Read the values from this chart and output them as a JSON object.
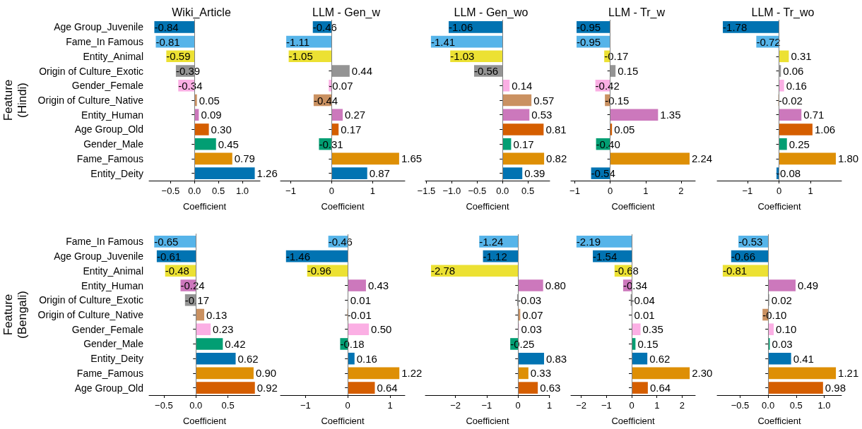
{
  "chart_data": [
    {
      "type": "bar",
      "orientation": "horizontal",
      "title": "Wiki_Article",
      "xlabel": "Coefficient",
      "ylabel": "Feature\n(Hindi)",
      "categories": [
        "Age Group_Juvenile",
        "Fame_In Famous",
        "Entity_Animal",
        "Origin of Culture_Exotic",
        "Gender_Female",
        "Origin of Culture_Native",
        "Entity_Human",
        "Age Group_Old",
        "Gender_Male",
        "Fame_Famous",
        "Entity_Deity"
      ],
      "values": [
        -0.84,
        -0.81,
        -0.59,
        -0.39,
        -0.34,
        0.05,
        0.09,
        0.3,
        0.45,
        0.79,
        1.26
      ],
      "value_labels": [
        "-0.84",
        "-0.81",
        "-0.59",
        "-0.39",
        "-0.34",
        "0.05",
        "0.09",
        "0.30",
        "0.45",
        "0.79",
        "1.26"
      ],
      "colors": [
        "#0173b2",
        "#56b4e9",
        "#ece133",
        "#949494",
        "#fbafe4",
        "#ca9161",
        "#cc78bc",
        "#d55e00",
        "#029e73",
        "#de8f05",
        "#0173b2"
      ],
      "xlim": [
        -0.95,
        1.37
      ],
      "xticks": [
        {
          "value": -0.5,
          "label": "−0.5"
        },
        {
          "value": 0,
          "label": "0.0"
        },
        {
          "value": 0.5,
          "label": "0.5"
        },
        {
          "value": 1,
          "label": "1.0"
        }
      ],
      "ref_lines": [
        {
          "axis": "x",
          "value": 0,
          "label": null,
          "color": "#808080"
        }
      ]
    },
    {
      "type": "bar",
      "orientation": "horizontal",
      "title": "LLM - Gen_w",
      "xlabel": "Coefficient",
      "tick_labels": "x",
      "categories": [
        null,
        null,
        null,
        null,
        null,
        null,
        null,
        null,
        null,
        null,
        null
      ],
      "values": [
        -0.46,
        -1.11,
        -1.05,
        0.44,
        -0.07,
        -0.44,
        0.27,
        0.17,
        -0.31,
        1.65,
        0.87
      ],
      "value_labels": [
        "-0.46",
        "-1.11",
        "-1.05",
        "0.44",
        "-0.07",
        "-0.44",
        "0.27",
        "0.17",
        "-0.31",
        "1.65",
        "0.87"
      ],
      "colors": [
        "#0173b2",
        "#56b4e9",
        "#ece133",
        "#949494",
        "#fbafe4",
        "#ca9161",
        "#cc78bc",
        "#d55e00",
        "#029e73",
        "#de8f05",
        "#0173b2"
      ],
      "xlim": [
        -1.25,
        1.79
      ],
      "xticks": [
        {
          "value": -1,
          "label": "−1"
        },
        {
          "value": 0,
          "label": "0"
        },
        {
          "value": 1,
          "label": "1"
        }
      ],
      "ref_lines": [
        {
          "axis": "x",
          "value": 0,
          "label": null,
          "color": "#808080"
        }
      ]
    },
    {
      "type": "bar",
      "orientation": "horizontal",
      "title": "LLM - Gen_wo",
      "xlabel": "Coefficient",
      "tick_labels": "x",
      "categories": [
        null,
        null,
        null,
        null,
        null,
        null,
        null,
        null,
        null,
        null,
        null
      ],
      "values": [
        -1.06,
        -1.41,
        -1.03,
        -0.56,
        0.14,
        0.57,
        0.53,
        0.81,
        0.17,
        0.82,
        0.39
      ],
      "value_labels": [
        "-1.06",
        "-1.41",
        "-1.03",
        "-0.56",
        "0.14",
        "0.57",
        "0.53",
        "0.81",
        "0.17",
        "0.82",
        "0.39"
      ],
      "colors": [
        "#0173b2",
        "#56b4e9",
        "#ece133",
        "#949494",
        "#fbafe4",
        "#ca9161",
        "#cc78bc",
        "#d55e00",
        "#029e73",
        "#de8f05",
        "#0173b2"
      ],
      "xlim": [
        -1.52,
        0.93
      ],
      "xticks": [
        {
          "value": -1.5,
          "label": "−1.5"
        },
        {
          "value": -1,
          "label": "−1.0"
        },
        {
          "value": -0.5,
          "label": "−0.5"
        },
        {
          "value": 0,
          "label": "0.0"
        },
        {
          "value": 0.5,
          "label": "0.5"
        }
      ],
      "ref_lines": [
        {
          "axis": "x",
          "value": 0,
          "label": null,
          "color": "#808080"
        }
      ]
    },
    {
      "type": "bar",
      "orientation": "horizontal",
      "title": "LLM - Tr_w",
      "xlabel": "Coefficient",
      "tick_labels": "x",
      "categories": [
        null,
        null,
        null,
        null,
        null,
        null,
        null,
        null,
        null,
        null,
        null
      ],
      "values": [
        -0.95,
        -0.95,
        -0.17,
        0.15,
        -0.42,
        -0.15,
        1.35,
        0.05,
        -0.4,
        2.24,
        -0.54
      ],
      "value_labels": [
        "-0.95",
        "-0.95",
        "-0.17",
        "0.15",
        "-0.42",
        "-0.15",
        "1.35",
        "0.05",
        "-0.40",
        "2.24",
        "-0.54"
      ],
      "colors": [
        "#0173b2",
        "#56b4e9",
        "#ece133",
        "#949494",
        "#fbafe4",
        "#ca9161",
        "#cc78bc",
        "#d55e00",
        "#029e73",
        "#de8f05",
        "#0173b2"
      ],
      "xlim": [
        -1.11,
        2.4
      ],
      "xticks": [
        {
          "value": -1,
          "label": "−1"
        },
        {
          "value": 0,
          "label": "0"
        },
        {
          "value": 1,
          "label": "1"
        },
        {
          "value": 2,
          "label": "2"
        }
      ],
      "ref_lines": [
        {
          "axis": "x",
          "value": 0,
          "label": null,
          "color": "#808080"
        }
      ]
    },
    {
      "type": "bar",
      "orientation": "horizontal",
      "title": "LLM - Tr_wo",
      "xlabel": "Coefficient",
      "tick_labels": "x",
      "categories": [
        null,
        null,
        null,
        null,
        null,
        null,
        null,
        null,
        null,
        null,
        null
      ],
      "values": [
        -1.78,
        -0.72,
        0.31,
        0.06,
        0.16,
        -0.02,
        0.71,
        1.06,
        0.25,
        1.8,
        -0.08
      ],
      "value_labels": [
        "-1.78",
        "-0.72",
        "0.31",
        "0.06",
        "0.16",
        "-0.02",
        "0.71",
        "1.06",
        "0.25",
        "1.80",
        "-0.08"
      ],
      "colors": [
        "#0173b2",
        "#56b4e9",
        "#ece133",
        "#949494",
        "#fbafe4",
        "#ca9161",
        "#cc78bc",
        "#d55e00",
        "#029e73",
        "#de8f05",
        "#0173b2"
      ],
      "xlim": [
        -1.96,
        1.98
      ],
      "xticks": [
        {
          "value": -1,
          "label": "−1"
        },
        {
          "value": 0,
          "label": "0"
        },
        {
          "value": 1,
          "label": "1"
        }
      ],
      "ref_lines": [
        {
          "axis": "x",
          "value": 0,
          "label": null,
          "color": "#808080"
        }
      ]
    },
    {
      "type": "bar",
      "orientation": "horizontal",
      "xlabel": "Coefficient",
      "ylabel": "Feature\n(Bengali)",
      "categories": [
        "Fame_In Famous",
        "Age Group_Juvenile",
        "Entity_Animal",
        "Entity_Human",
        "Origin of Culture_Exotic",
        "Origin of Culture_Native",
        "Gender_Female",
        "Gender_Male",
        "Entity_Deity",
        "Fame_Famous",
        "Age Group_Old"
      ],
      "values": [
        -0.65,
        -0.61,
        -0.48,
        -0.24,
        -0.17,
        0.13,
        0.23,
        0.42,
        0.62,
        0.9,
        0.92
      ],
      "value_labels": [
        "-0.65",
        "-0.61",
        "-0.48",
        "-0.24",
        "-0.17",
        "0.13",
        "0.23",
        "0.42",
        "0.62",
        "0.90",
        "0.92"
      ],
      "colors": [
        "#56b4e9",
        "#0173b2",
        "#ece133",
        "#cc78bc",
        "#949494",
        "#ca9161",
        "#fbafe4",
        "#029e73",
        "#0173b2",
        "#de8f05",
        "#d55e00"
      ],
      "xlim": [
        -0.73,
        1.0
      ],
      "xticks": [
        {
          "value": -0.5,
          "label": "−0.5"
        },
        {
          "value": 0,
          "label": "0.0"
        },
        {
          "value": 0.5,
          "label": "0.5"
        }
      ],
      "ref_lines": [
        {
          "axis": "x",
          "value": 0,
          "label": null,
          "color": "#808080"
        }
      ]
    },
    {
      "type": "bar",
      "orientation": "horizontal",
      "xlabel": "Coefficient",
      "tick_labels": "x",
      "categories": [
        null,
        null,
        null,
        null,
        null,
        null,
        null,
        null,
        null,
        null,
        null
      ],
      "values": [
        -0.46,
        -1.46,
        -0.96,
        0.43,
        0.01,
        -0.01,
        0.5,
        -0.18,
        0.16,
        1.22,
        0.64
      ],
      "value_labels": [
        "-0.46",
        "-1.46",
        "-0.96",
        "0.43",
        "0.01",
        "-0.01",
        "0.50",
        "-0.18",
        "0.16",
        "1.22",
        "0.64"
      ],
      "colors": [
        "#56b4e9",
        "#0173b2",
        "#ece133",
        "#cc78bc",
        "#949494",
        "#ca9161",
        "#fbafe4",
        "#029e73",
        "#0173b2",
        "#de8f05",
        "#d55e00"
      ],
      "xlim": [
        -1.59,
        1.35
      ],
      "xticks": [
        {
          "value": -1,
          "label": "−1"
        },
        {
          "value": 0,
          "label": "0"
        },
        {
          "value": 1,
          "label": "1"
        }
      ],
      "ref_lines": [
        {
          "axis": "x",
          "value": 0,
          "label": null,
          "color": "#808080"
        }
      ]
    },
    {
      "type": "bar",
      "orientation": "horizontal",
      "xlabel": "Coefficient",
      "tick_labels": "x",
      "categories": [
        null,
        null,
        null,
        null,
        null,
        null,
        null,
        null,
        null,
        null,
        null
      ],
      "values": [
        -1.24,
        -1.12,
        -2.78,
        0.8,
        -0.03,
        0.07,
        0.03,
        -0.25,
        0.83,
        0.33,
        0.63
      ],
      "value_labels": [
        "-1.24",
        "-1.12",
        "-2.78",
        "0.80",
        "-0.03",
        "0.07",
        "0.03",
        "-0.25",
        "0.83",
        "0.33",
        "0.63"
      ],
      "colors": [
        "#56b4e9",
        "#0173b2",
        "#ece133",
        "#cc78bc",
        "#949494",
        "#ca9161",
        "#fbafe4",
        "#029e73",
        "#0173b2",
        "#de8f05",
        "#d55e00"
      ],
      "xlim": [
        -2.96,
        1.01
      ],
      "xticks": [
        {
          "value": -2,
          "label": "−2"
        },
        {
          "value": -1,
          "label": "−1"
        },
        {
          "value": 0,
          "label": "0"
        },
        {
          "value": 1,
          "label": "1"
        }
      ],
      "ref_lines": [
        {
          "axis": "x",
          "value": 0,
          "label": null,
          "color": "#808080"
        }
      ]
    },
    {
      "type": "bar",
      "orientation": "horizontal",
      "xlabel": "Coefficient",
      "tick_labels": "x",
      "categories": [
        null,
        null,
        null,
        null,
        null,
        null,
        null,
        null,
        null,
        null,
        null
      ],
      "values": [
        -2.19,
        -1.54,
        -0.68,
        -0.34,
        -0.04,
        0.01,
        0.35,
        0.15,
        0.62,
        2.3,
        0.64
      ],
      "value_labels": [
        "-2.19",
        "-1.54",
        "-0.68",
        "-0.34",
        "-0.04",
        "0.01",
        "0.35",
        "0.15",
        "0.62",
        "2.30",
        "0.64"
      ],
      "colors": [
        "#56b4e9",
        "#0173b2",
        "#ece133",
        "#cc78bc",
        "#949494",
        "#ca9161",
        "#fbafe4",
        "#029e73",
        "#0173b2",
        "#de8f05",
        "#d55e00"
      ],
      "xlim": [
        -2.41,
        2.52
      ],
      "xticks": [
        {
          "value": -2,
          "label": "−2"
        },
        {
          "value": -1,
          "label": "−1"
        },
        {
          "value": 0,
          "label": "0"
        },
        {
          "value": 1,
          "label": "1"
        },
        {
          "value": 2,
          "label": "2"
        }
      ],
      "ref_lines": [
        {
          "axis": "x",
          "value": 0,
          "label": null,
          "color": "#808080"
        }
      ]
    },
    {
      "type": "bar",
      "orientation": "horizontal",
      "xlabel": "Coefficient",
      "tick_labels": "x",
      "categories": [
        null,
        null,
        null,
        null,
        null,
        null,
        null,
        null,
        null,
        null,
        null
      ],
      "values": [
        -0.53,
        -0.66,
        -0.81,
        0.49,
        0.02,
        -0.1,
        0.1,
        0.03,
        0.41,
        1.21,
        0.98
      ],
      "value_labels": [
        "-0.53",
        "-0.66",
        "-0.81",
        "0.49",
        "0.02",
        "-0.10",
        "0.10",
        "0.03",
        "0.41",
        "1.21",
        "0.98"
      ],
      "colors": [
        "#56b4e9",
        "#0173b2",
        "#ece133",
        "#cc78bc",
        "#949494",
        "#ca9161",
        "#fbafe4",
        "#029e73",
        "#0173b2",
        "#de8f05",
        "#d55e00"
      ],
      "xlim": [
        -0.91,
        1.31
      ],
      "xticks": [
        {
          "value": -0.5,
          "label": "−0.5"
        },
        {
          "value": 0,
          "label": "0.0"
        },
        {
          "value": 0.5,
          "label": "0.5"
        },
        {
          "value": 1,
          "label": "1.0"
        }
      ],
      "ref_lines": [
        {
          "axis": "x",
          "value": 0,
          "label": null,
          "color": "#808080"
        }
      ]
    }
  ]
}
